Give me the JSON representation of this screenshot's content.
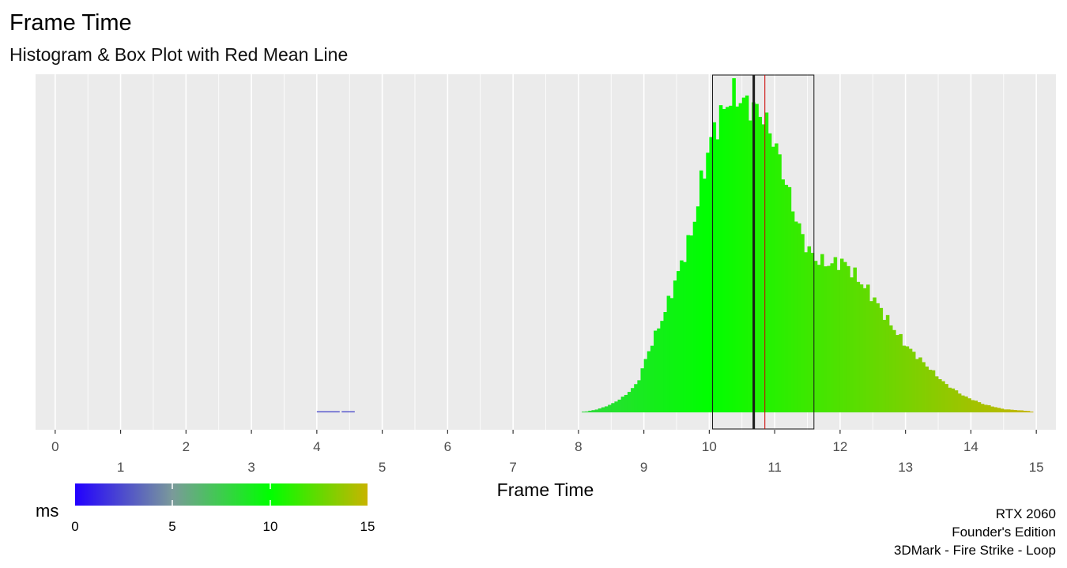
{
  "chart_data": {
    "type": "histogram",
    "title": "Frame Time",
    "subtitle": "Histogram & Box Plot with Red Mean Line",
    "xlabel": "Frame Time",
    "ylabel": "",
    "xlim": [
      -0.3,
      15.3
    ],
    "grid": true,
    "x_ticks_row1": [
      "0",
      "2",
      "4",
      "6",
      "8",
      "10",
      "12",
      "14"
    ],
    "x_ticks_row2": [
      "1",
      "3",
      "5",
      "7",
      "9",
      "11",
      "13",
      "15"
    ],
    "bin_width": 0.05,
    "outliers": [
      {
        "x0": 4.0,
        "x1": 4.35,
        "relative_count": 0.003
      },
      {
        "x0": 4.38,
        "x1": 4.58,
        "relative_count": 0.003
      }
    ],
    "histogram_profile": [
      {
        "x": 8.05,
        "relative_count": 0.0
      },
      {
        "x": 8.3,
        "relative_count": 0.01
      },
      {
        "x": 8.5,
        "relative_count": 0.025
      },
      {
        "x": 8.7,
        "relative_count": 0.05
      },
      {
        "x": 8.9,
        "relative_count": 0.09
      },
      {
        "x": 9.0,
        "relative_count": 0.15
      },
      {
        "x": 9.15,
        "relative_count": 0.23
      },
      {
        "x": 9.3,
        "relative_count": 0.3
      },
      {
        "x": 9.5,
        "relative_count": 0.42
      },
      {
        "x": 9.75,
        "relative_count": 0.57
      },
      {
        "x": 9.9,
        "relative_count": 0.74
      },
      {
        "x": 10.05,
        "relative_count": 0.87
      },
      {
        "x": 10.2,
        "relative_count": 0.93
      },
      {
        "x": 10.35,
        "relative_count": 0.99
      },
      {
        "x": 10.5,
        "relative_count": 0.97
      },
      {
        "x": 10.65,
        "relative_count": 0.95
      },
      {
        "x": 10.8,
        "relative_count": 0.93
      },
      {
        "x": 11.0,
        "relative_count": 0.84
      },
      {
        "x": 11.15,
        "relative_count": 0.73
      },
      {
        "x": 11.3,
        "relative_count": 0.62
      },
      {
        "x": 11.45,
        "relative_count": 0.53
      },
      {
        "x": 11.6,
        "relative_count": 0.48
      },
      {
        "x": 11.7,
        "relative_count": 0.47
      },
      {
        "x": 11.85,
        "relative_count": 0.46
      },
      {
        "x": 12.0,
        "relative_count": 0.47
      },
      {
        "x": 12.1,
        "relative_count": 0.46
      },
      {
        "x": 12.25,
        "relative_count": 0.42
      },
      {
        "x": 12.5,
        "relative_count": 0.36
      },
      {
        "x": 12.75,
        "relative_count": 0.28
      },
      {
        "x": 13.0,
        "relative_count": 0.21
      },
      {
        "x": 13.3,
        "relative_count": 0.15
      },
      {
        "x": 13.6,
        "relative_count": 0.09
      },
      {
        "x": 13.9,
        "relative_count": 0.05
      },
      {
        "x": 14.2,
        "relative_count": 0.025
      },
      {
        "x": 14.5,
        "relative_count": 0.01
      },
      {
        "x": 14.9,
        "relative_count": 0.004
      },
      {
        "x": 14.95,
        "relative_count": 0.0
      }
    ],
    "box_plot": {
      "q1": 10.05,
      "median": 10.68,
      "q3": 11.6
    },
    "mean": 10.85,
    "colors": {
      "mean_line": "#cc0000",
      "median_line": "#1a1a1a",
      "box_outline": "#1a1a1a",
      "panel_background": "#ebebeb",
      "gradient_stops": [
        {
          "value": 0,
          "color": "#2200ff"
        },
        {
          "value": 5,
          "color": "#7a9a9a"
        },
        {
          "value": 10,
          "color": "#00ff00"
        },
        {
          "value": 15,
          "color": "#c8b400"
        }
      ]
    }
  },
  "legend": {
    "title": "ms",
    "labels": [
      "0",
      "5",
      "10",
      "15"
    ]
  },
  "caption": {
    "line1": "RTX 2060",
    "line2": "Founder's Edition",
    "line3": "3DMark - Fire Strike - Loop"
  }
}
